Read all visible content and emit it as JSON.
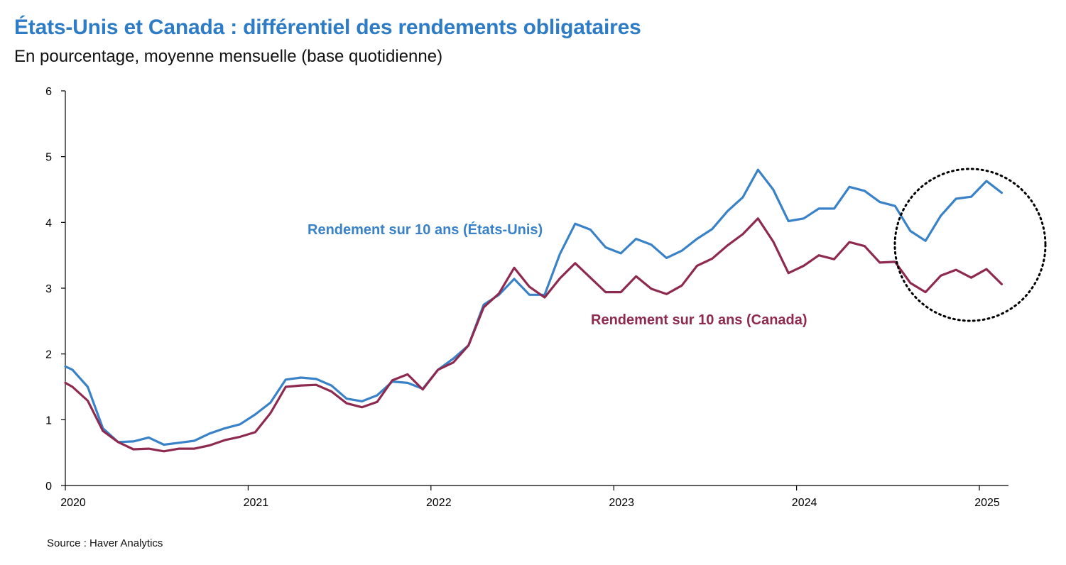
{
  "title": "États-Unis et Canada : différentiel des rendements obligataires",
  "subtitle": "En pourcentage, moyenne mensuelle (base quotidienne)",
  "source": "Source : Haver Analytics",
  "colors": {
    "title": "#2f7cc6",
    "us": "#3a82c8",
    "canada": "#8e2a4f",
    "axis": "#000000"
  },
  "chart_data": {
    "type": "line",
    "title": "États-Unis et Canada : différentiel des rendements obligataires",
    "xlabel": "",
    "ylabel": "",
    "ylim": [
      0,
      6
    ],
    "yticks": [
      "0",
      "1",
      "2",
      "3",
      "4",
      "5",
      "6"
    ],
    "xticks": [
      "2020",
      "2021",
      "2022",
      "2023",
      "2024",
      "2025"
    ],
    "x_start": "2020-01",
    "x": [
      "2020-01",
      "2020-02",
      "2020-03",
      "2020-04",
      "2020-05",
      "2020-06",
      "2020-07",
      "2020-08",
      "2020-09",
      "2020-10",
      "2020-11",
      "2020-12",
      "2021-01",
      "2021-02",
      "2021-03",
      "2021-04",
      "2021-05",
      "2021-06",
      "2021-07",
      "2021-08",
      "2021-09",
      "2021-10",
      "2021-11",
      "2021-12",
      "2022-01",
      "2022-02",
      "2022-03",
      "2022-04",
      "2022-05",
      "2022-06",
      "2022-07",
      "2022-08",
      "2022-09",
      "2022-10",
      "2022-11",
      "2022-12",
      "2023-01",
      "2023-02",
      "2023-03",
      "2023-04",
      "2023-05",
      "2023-06",
      "2023-07",
      "2023-08",
      "2023-09",
      "2023-10",
      "2023-11",
      "2023-12",
      "2024-01",
      "2024-02",
      "2024-03",
      "2024-04",
      "2024-05",
      "2024-06",
      "2024-07",
      "2024-08",
      "2024-09",
      "2024-10",
      "2024-11",
      "2024-12",
      "2025-01",
      "2025-02"
    ],
    "series": [
      {
        "name": "Rendement sur 10 ans (États-Unis)",
        "values": [
          1.76,
          1.5,
          0.87,
          0.66,
          0.67,
          0.73,
          0.62,
          0.65,
          0.68,
          0.79,
          0.87,
          0.93,
          1.08,
          1.26,
          1.61,
          1.64,
          1.62,
          1.52,
          1.32,
          1.28,
          1.37,
          1.58,
          1.56,
          1.47,
          1.76,
          1.93,
          2.13,
          2.75,
          2.9,
          3.14,
          2.9,
          2.9,
          3.52,
          3.98,
          3.89,
          3.62,
          3.53,
          3.75,
          3.66,
          3.46,
          3.57,
          3.75,
          3.9,
          4.17,
          4.38,
          4.8,
          4.5,
          4.02,
          4.06,
          4.21,
          4.21,
          4.54,
          4.48,
          4.31,
          4.25,
          3.87,
          3.72,
          4.1,
          4.36,
          4.39,
          4.63,
          4.45
        ]
      },
      {
        "name": "Rendement sur 10 ans (Canada)",
        "values": [
          1.5,
          1.29,
          0.83,
          0.66,
          0.55,
          0.56,
          0.52,
          0.56,
          0.56,
          0.61,
          0.69,
          0.74,
          0.81,
          1.1,
          1.5,
          1.52,
          1.53,
          1.43,
          1.25,
          1.19,
          1.27,
          1.6,
          1.69,
          1.46,
          1.76,
          1.87,
          2.13,
          2.71,
          2.92,
          3.31,
          3.02,
          2.86,
          3.15,
          3.38,
          3.16,
          2.94,
          2.94,
          3.18,
          2.99,
          2.91,
          3.04,
          3.34,
          3.45,
          3.65,
          3.82,
          4.06,
          3.71,
          3.23,
          3.34,
          3.5,
          3.44,
          3.7,
          3.64,
          3.39,
          3.4,
          3.08,
          2.94,
          3.19,
          3.28,
          3.16,
          3.29,
          3.06
        ]
      }
    ],
    "annotations": [
      "Rendement sur 10 ans (États-Unis)",
      "Rendement sur 10 ans (Canada)"
    ],
    "highlight": "dotted circle around latest months"
  }
}
